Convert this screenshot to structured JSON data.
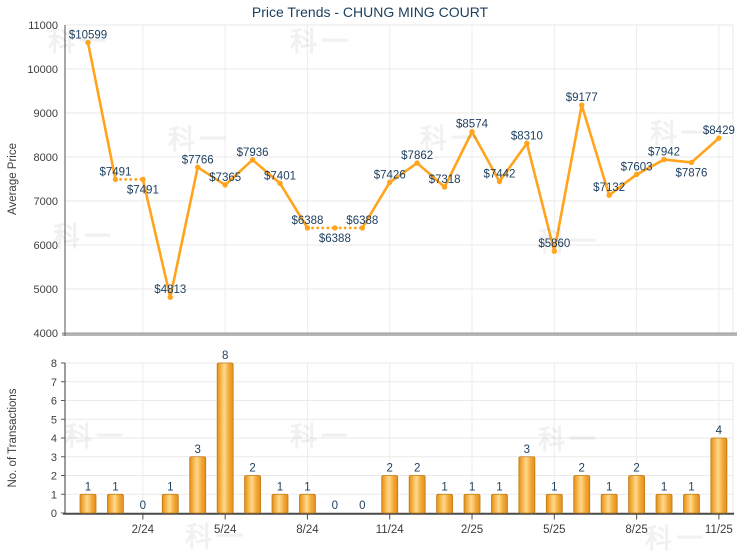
{
  "page": {
    "watermark_text": "科一"
  },
  "colors": {
    "line": "#FFA41C",
    "data_label": "#1C3E5E",
    "tick_label": "#3d3d3d",
    "grid": "#EAEAEA",
    "axis_dark": "#4a4a4a",
    "axis_gray": "#B6B6B6",
    "bar_light": "#FFD98C",
    "bar_mid": "#F2A734",
    "bar_dark": "#E28F1D",
    "bar_border": "#C07A14"
  },
  "chart_data": [
    {
      "type": "line",
      "title": "Price Trends - CHUNG MING COURT",
      "ylabel": "Average Price",
      "ylim": [
        4000,
        11000
      ],
      "yticks": [
        11000,
        10000,
        9000,
        8000,
        7000,
        6000,
        5000,
        4000
      ],
      "n_points": 24,
      "values": [
        10599,
        7491,
        7491,
        4813,
        7766,
        7365,
        7936,
        7401,
        6388,
        6388,
        6388,
        7426,
        7862,
        7318,
        8574,
        7442,
        8310,
        5860,
        9177,
        7132,
        7603,
        7942,
        7876,
        8429
      ],
      "point_labels": [
        "$10599",
        "$7491",
        "$7491",
        "$4813",
        "$7766",
        "$7365",
        "$7936",
        "$7401",
        "$6388",
        "$6388",
        "$6388",
        "$7426",
        "$7862",
        "$7318",
        "$8574",
        "$7442",
        "$8310",
        "$5860",
        "$9177",
        "$7132",
        "$7603",
        "$7942",
        "$7876",
        "$8429"
      ],
      "labels_below_indices": [
        2,
        9,
        22
      ],
      "dotted_segments_ending_at": [
        2,
        9,
        10
      ],
      "vgrid_positions": [
        2,
        5,
        8,
        11,
        14,
        17,
        20,
        23
      ],
      "grid": true,
      "legend": "none"
    },
    {
      "type": "bar",
      "ylabel": "No. of Transactions",
      "ylim": [
        0,
        8
      ],
      "yticks": [
        8,
        7,
        6,
        5,
        4,
        3,
        2,
        1,
        0
      ],
      "values": [
        1,
        1,
        0,
        1,
        3,
        8,
        2,
        1,
        1,
        0,
        0,
        2,
        2,
        1,
        1,
        1,
        3,
        1,
        2,
        1,
        2,
        1,
        1,
        4
      ],
      "bar_labels": [
        "1",
        "1",
        "0",
        "1",
        "3",
        "8",
        "2",
        "1",
        "1",
        "0",
        "0",
        "2",
        "2",
        "1",
        "1",
        "1",
        "3",
        "1",
        "2",
        "1",
        "2",
        "1",
        "1",
        "4"
      ],
      "xticks": {
        "positions": [
          2,
          5,
          8,
          11,
          14,
          17,
          20,
          23
        ],
        "labels": [
          "2/24",
          "5/24",
          "8/24",
          "11/24",
          "2/25",
          "5/25",
          "8/25",
          "11/25"
        ]
      },
      "grid": true,
      "legend": "none"
    }
  ]
}
